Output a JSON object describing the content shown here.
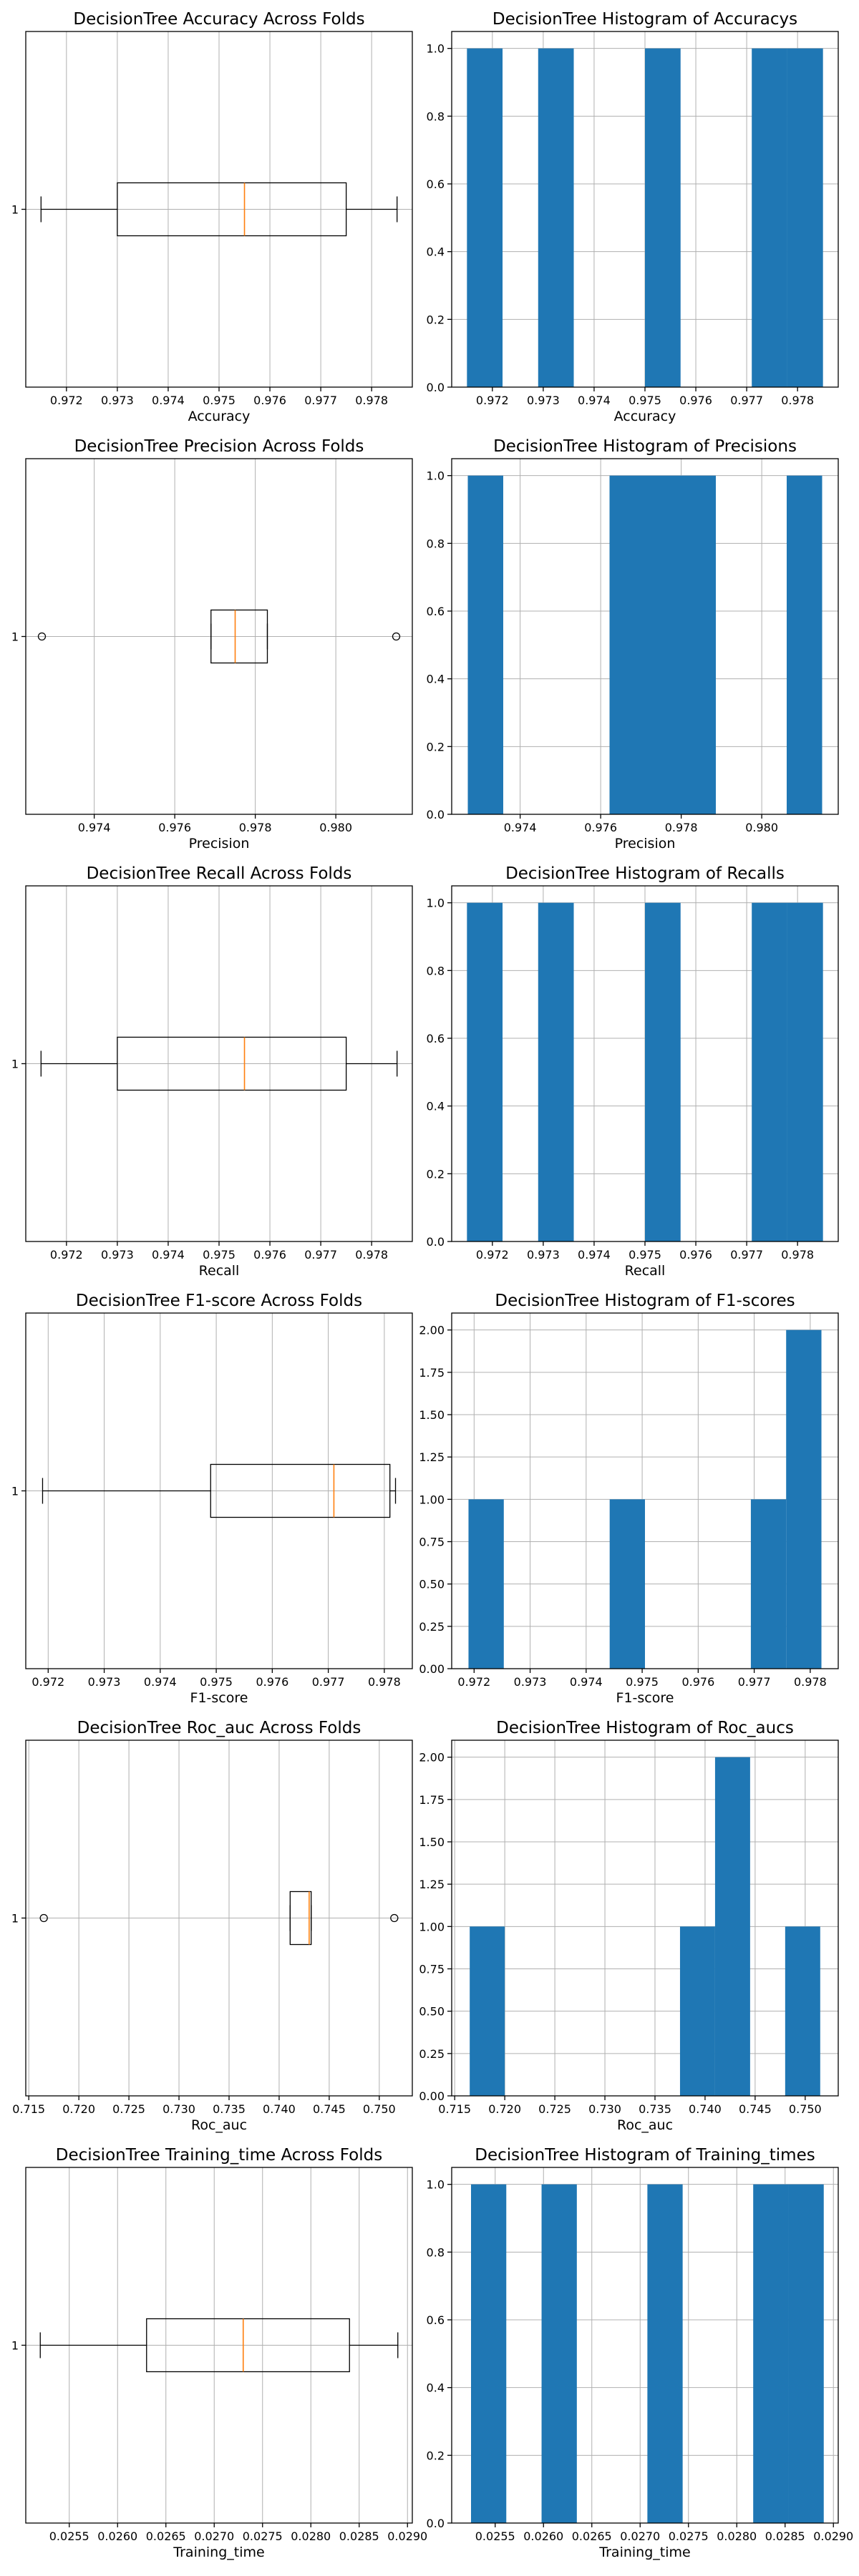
{
  "figure": {
    "bar_color": "#1f77b4",
    "median_color": "#ff7f0e"
  },
  "chart_data": [
    {
      "type": "box",
      "title": "DecisionTree Accuracy Across Folds",
      "xlabel": "Accuracy",
      "xlim": [
        0.9712,
        0.9788
      ],
      "xticks": [
        0.972,
        0.973,
        0.974,
        0.975,
        0.976,
        0.977,
        0.978
      ],
      "tick_decimals": 3,
      "ytick": "1",
      "min": 0.9715,
      "q1": 0.973,
      "median": 0.9755,
      "q3": 0.9775,
      "max": 0.9785,
      "outliers": [],
      "grid": true
    },
    {
      "type": "histogram",
      "title": "DecisionTree Histogram of Accuracys",
      "xlabel": "Accuracy",
      "xlim": [
        0.9712,
        0.9788
      ],
      "xticks": [
        0.972,
        0.973,
        0.974,
        0.975,
        0.976,
        0.977,
        0.978
      ],
      "tick_decimals": 3,
      "ylim": [
        0,
        1.05
      ],
      "yticks": [
        0.0,
        0.2,
        0.4,
        0.6,
        0.8,
        1.0
      ],
      "ytick_decimals": 1,
      "bin_start": 0.9715,
      "bin_width": 0.0007,
      "counts": [
        1,
        0,
        1,
        0,
        0,
        1,
        0,
        0,
        1,
        1
      ],
      "grid": true
    },
    {
      "type": "box",
      "title": "DecisionTree Precision Across Folds",
      "xlabel": "Precision",
      "xlim": [
        0.9723,
        0.9819
      ],
      "xticks": [
        0.974,
        0.976,
        0.978,
        0.98
      ],
      "tick_decimals": 3,
      "ytick": "1",
      "min": 0.9769,
      "q1": 0.9769,
      "median": 0.9775,
      "q3": 0.9783,
      "max": 0.9783,
      "outliers": [
        0.9727,
        0.9815
      ],
      "grid": true
    },
    {
      "type": "histogram",
      "title": "DecisionTree Histogram of Precisions",
      "xlabel": "Precision",
      "xlim": [
        0.9723,
        0.9819
      ],
      "xticks": [
        0.974,
        0.976,
        0.978,
        0.98
      ],
      "tick_decimals": 3,
      "ylim": [
        0,
        1.05
      ],
      "yticks": [
        0.0,
        0.2,
        0.4,
        0.6,
        0.8,
        1.0
      ],
      "ytick_decimals": 1,
      "bin_start": 0.9727,
      "bin_width": 0.00088,
      "counts": [
        1,
        0,
        0,
        0,
        1,
        1,
        1,
        0,
        0,
        1
      ],
      "grid": true
    },
    {
      "type": "box",
      "title": "DecisionTree Recall Across Folds",
      "xlabel": "Recall",
      "xlim": [
        0.9712,
        0.9788
      ],
      "xticks": [
        0.972,
        0.973,
        0.974,
        0.975,
        0.976,
        0.977,
        0.978
      ],
      "tick_decimals": 3,
      "ytick": "1",
      "min": 0.9715,
      "q1": 0.973,
      "median": 0.9755,
      "q3": 0.9775,
      "max": 0.9785,
      "outliers": [],
      "grid": true
    },
    {
      "type": "histogram",
      "title": "DecisionTree Histogram of Recalls",
      "xlabel": "Recall",
      "xlim": [
        0.9712,
        0.9788
      ],
      "xticks": [
        0.972,
        0.973,
        0.974,
        0.975,
        0.976,
        0.977,
        0.978
      ],
      "tick_decimals": 3,
      "ylim": [
        0,
        1.05
      ],
      "yticks": [
        0.0,
        0.2,
        0.4,
        0.6,
        0.8,
        1.0
      ],
      "ytick_decimals": 1,
      "bin_start": 0.9715,
      "bin_width": 0.0007,
      "counts": [
        1,
        0,
        1,
        0,
        0,
        1,
        0,
        0,
        1,
        1
      ],
      "grid": true
    },
    {
      "type": "box",
      "title": "DecisionTree F1-score Across Folds",
      "xlabel": "F1-score",
      "xlim": [
        0.9716,
        0.9785
      ],
      "xticks": [
        0.972,
        0.973,
        0.974,
        0.975,
        0.976,
        0.977,
        0.978
      ],
      "tick_decimals": 3,
      "ytick": "1",
      "min": 0.9719,
      "q1": 0.9749,
      "median": 0.9771,
      "q3": 0.9781,
      "max": 0.9782,
      "outliers": [],
      "grid": true
    },
    {
      "type": "histogram",
      "title": "DecisionTree Histogram of F1-scores",
      "xlabel": "F1-score",
      "xlim": [
        0.9716,
        0.9785
      ],
      "xticks": [
        0.972,
        0.973,
        0.974,
        0.975,
        0.976,
        0.977,
        0.978
      ],
      "tick_decimals": 3,
      "ylim": [
        0,
        2.1
      ],
      "yticks": [
        0.0,
        0.25,
        0.5,
        0.75,
        1.0,
        1.25,
        1.5,
        1.75,
        2.0
      ],
      "ytick_decimals": 2,
      "bin_start": 0.9719,
      "bin_width": 0.00063,
      "counts": [
        1,
        0,
        0,
        0,
        1,
        0,
        0,
        0,
        1,
        2
      ],
      "grid": true
    },
    {
      "type": "box",
      "title": "DecisionTree Roc_auc Across Folds",
      "xlabel": "Roc_auc",
      "xlim": [
        0.7147,
        0.7533
      ],
      "xticks": [
        0.715,
        0.72,
        0.725,
        0.73,
        0.735,
        0.74,
        0.745,
        0.75
      ],
      "tick_decimals": 3,
      "ytick": "1",
      "min": 0.7411,
      "q1": 0.7411,
      "median": 0.743,
      "q3": 0.7432,
      "max": 0.7432,
      "outliers": [
        0.7165,
        0.7515
      ],
      "grid": true
    },
    {
      "type": "histogram",
      "title": "DecisionTree Histogram of Roc_aucs",
      "xlabel": "Roc_auc",
      "xlim": [
        0.7147,
        0.7533
      ],
      "xticks": [
        0.715,
        0.72,
        0.725,
        0.73,
        0.735,
        0.74,
        0.745,
        0.75
      ],
      "tick_decimals": 3,
      "ylim": [
        0,
        2.1
      ],
      "yticks": [
        0.0,
        0.25,
        0.5,
        0.75,
        1.0,
        1.25,
        1.5,
        1.75,
        2.0
      ],
      "ytick_decimals": 2,
      "bin_start": 0.7165,
      "bin_width": 0.0035,
      "counts": [
        1,
        0,
        0,
        0,
        0,
        0,
        1,
        2,
        0,
        1
      ],
      "grid": true
    },
    {
      "type": "box",
      "title": "DecisionTree Training_time Across Folds",
      "xlabel": "Training_time",
      "xlim": [
        0.02505,
        0.02905
      ],
      "xticks": [
        0.0255,
        0.026,
        0.0265,
        0.027,
        0.0275,
        0.028,
        0.0285,
        0.029
      ],
      "tick_decimals": 4,
      "ytick": "1",
      "min": 0.0252,
      "q1": 0.0263,
      "median": 0.0273,
      "q3": 0.0284,
      "max": 0.0289,
      "outliers": [],
      "grid": true
    },
    {
      "type": "histogram",
      "title": "DecisionTree Histogram of Training_times",
      "xlabel": "Training_time",
      "xlim": [
        0.02505,
        0.02905
      ],
      "xticks": [
        0.0255,
        0.026,
        0.0265,
        0.027,
        0.0275,
        0.028,
        0.0285,
        0.029
      ],
      "tick_decimals": 4,
      "ylim": [
        0,
        1.05
      ],
      "yticks": [
        0.0,
        0.2,
        0.4,
        0.6,
        0.8,
        1.0
      ],
      "ytick_decimals": 1,
      "bin_start": 0.02525,
      "bin_width": 0.000365,
      "counts": [
        1,
        0,
        1,
        0,
        0,
        1,
        0,
        0,
        1,
        1
      ],
      "grid": true
    }
  ]
}
